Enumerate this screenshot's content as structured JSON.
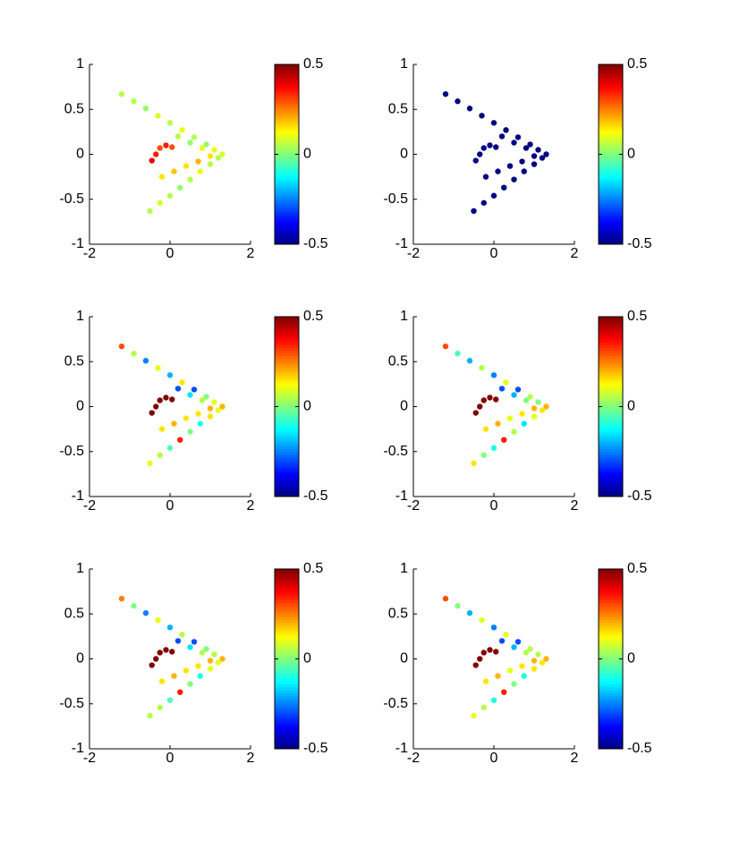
{
  "chart_data": [
    {
      "type": "scatter",
      "colormap": "jet",
      "xlim": [
        -2,
        2
      ],
      "ylim": [
        -1,
        1
      ],
      "xticks": [
        -2,
        0,
        2
      ],
      "yticks": [
        -1,
        -0.5,
        0,
        0.5,
        1
      ],
      "clim": [
        -0.5,
        0.5
      ],
      "cticks": [
        -0.5,
        0,
        0.5
      ],
      "x": [
        -1.2,
        -0.9,
        -0.6,
        -0.3,
        0,
        0.3,
        0.6,
        0.9,
        1.1,
        1.3,
        -0.5,
        -0.25,
        0,
        0.25,
        0.5,
        0.75,
        1.0,
        1.2,
        -0.2,
        0.1,
        0.4,
        0.7,
        1.0,
        0.2,
        0.5,
        0.8,
        -0.45,
        -0.35,
        -0.25,
        -0.1,
        0.05
      ],
      "values": [
        0.67,
        0.59,
        0.51,
        0.43,
        0.35,
        0.27,
        0.19,
        0.11,
        0.05,
        0,
        -0.63,
        -0.54,
        -0.46,
        -0.37,
        -0.28,
        -0.19,
        -0.11,
        -0.04,
        -0.25,
        -0.19,
        -0.13,
        -0.08,
        -0.02,
        0.2,
        0.13,
        0.07,
        -0.07,
        0.0,
        0.07,
        0.1,
        0.08
      ],
      "color_values": [
        0.05,
        0.05,
        0.02,
        0.08,
        0.05,
        0.1,
        0.05,
        0.02,
        0.1,
        0.08,
        0.05,
        0.08,
        0.05,
        0.02,
        0.05,
        0.1,
        0.05,
        0.05,
        0.15,
        0.18,
        0.15,
        0.2,
        0.15,
        0.05,
        0.02,
        0.1,
        0.4,
        0.35,
        0.3,
        0.35,
        0.3
      ]
    },
    {
      "type": "scatter",
      "colormap": "jet",
      "xlim": [
        -2,
        2
      ],
      "ylim": [
        -1,
        1
      ],
      "xticks": [
        -2,
        0,
        2
      ],
      "yticks": [
        -1,
        -0.5,
        0,
        0.5,
        1
      ],
      "clim": [
        -0.5,
        0.5
      ],
      "cticks": [
        -0.5,
        0,
        0.5
      ],
      "x": [
        -1.2,
        -0.9,
        -0.6,
        -0.3,
        0,
        0.3,
        0.6,
        0.9,
        1.1,
        1.3,
        -0.5,
        -0.25,
        0,
        0.25,
        0.5,
        0.75,
        1.0,
        1.2,
        -0.2,
        0.1,
        0.4,
        0.7,
        1.0,
        0.2,
        0.5,
        0.8,
        -0.45,
        -0.35,
        -0.25,
        -0.1,
        0.05
      ],
      "values": [
        0.67,
        0.59,
        0.51,
        0.43,
        0.35,
        0.27,
        0.19,
        0.11,
        0.05,
        0,
        -0.63,
        -0.54,
        -0.46,
        -0.37,
        -0.28,
        -0.19,
        -0.11,
        -0.04,
        -0.25,
        -0.19,
        -0.13,
        -0.08,
        -0.02,
        0.2,
        0.13,
        0.07,
        -0.07,
        0.0,
        0.07,
        0.1,
        0.08
      ],
      "color_values": [
        -0.5,
        -0.5,
        -0.5,
        -0.5,
        -0.5,
        -0.5,
        -0.5,
        -0.5,
        -0.5,
        -0.5,
        -0.5,
        -0.5,
        -0.5,
        -0.5,
        -0.5,
        -0.5,
        -0.5,
        -0.5,
        -0.5,
        -0.5,
        -0.5,
        -0.5,
        -0.5,
        -0.5,
        -0.5,
        -0.5,
        -0.5,
        -0.5,
        -0.5,
        -0.5,
        -0.5
      ]
    },
    {
      "type": "scatter",
      "colormap": "jet",
      "xlim": [
        -2,
        2
      ],
      "ylim": [
        -1,
        1
      ],
      "xticks": [
        -2,
        0,
        2
      ],
      "yticks": [
        -1,
        -0.5,
        0,
        0.5,
        1
      ],
      "clim": [
        -0.5,
        0.5
      ],
      "cticks": [
        -0.5,
        0,
        0.5
      ],
      "x": [
        -1.2,
        -0.9,
        -0.6,
        -0.3,
        0,
        0.3,
        0.6,
        0.9,
        1.1,
        1.3,
        -0.5,
        -0.25,
        0,
        0.25,
        0.5,
        0.75,
        1.0,
        1.2,
        -0.2,
        0.1,
        0.4,
        0.7,
        1.0,
        0.2,
        0.5,
        0.8,
        -0.45,
        -0.35,
        -0.25,
        -0.1,
        0.05
      ],
      "values": [
        0.67,
        0.59,
        0.51,
        0.43,
        0.35,
        0.27,
        0.19,
        0.11,
        0.05,
        0,
        -0.63,
        -0.54,
        -0.46,
        -0.37,
        -0.28,
        -0.19,
        -0.11,
        -0.04,
        -0.25,
        -0.19,
        -0.13,
        -0.08,
        -0.02,
        0.2,
        0.13,
        0.07,
        -0.07,
        0.0,
        0.07,
        0.1,
        0.08
      ],
      "color_values": [
        0.3,
        0.05,
        -0.25,
        0.1,
        -0.2,
        0.15,
        -0.3,
        0.0,
        0.1,
        0.2,
        0.1,
        0.05,
        -0.05,
        0.35,
        0.0,
        -0.1,
        0.15,
        0.1,
        0.15,
        0.2,
        0.15,
        0.15,
        0.2,
        -0.3,
        -0.15,
        0.05,
        0.5,
        0.5,
        0.5,
        0.5,
        0.5
      ]
    },
    {
      "type": "scatter",
      "colormap": "jet",
      "xlim": [
        -2,
        2
      ],
      "ylim": [
        -1,
        1
      ],
      "xticks": [
        -2,
        0,
        2
      ],
      "yticks": [
        -1,
        -0.5,
        0,
        0.5,
        1
      ],
      "clim": [
        -0.5,
        0.5
      ],
      "cticks": [
        -0.5,
        0,
        0.5
      ],
      "x": [
        -1.2,
        -0.9,
        -0.6,
        -0.3,
        0,
        0.3,
        0.6,
        0.9,
        1.1,
        1.3,
        -0.5,
        -0.25,
        0,
        0.25,
        0.5,
        0.75,
        1.0,
        1.2,
        -0.2,
        0.1,
        0.4,
        0.7,
        1.0,
        0.2,
        0.5,
        0.8,
        -0.45,
        -0.35,
        -0.25,
        -0.1,
        0.05
      ],
      "values": [
        0.67,
        0.59,
        0.51,
        0.43,
        0.35,
        0.27,
        0.19,
        0.11,
        0.05,
        0,
        -0.63,
        -0.54,
        -0.46,
        -0.37,
        -0.28,
        -0.19,
        -0.11,
        -0.04,
        -0.25,
        -0.19,
        -0.13,
        -0.08,
        -0.02,
        0.2,
        0.13,
        0.07,
        -0.07,
        0.0,
        0.07,
        0.1,
        0.08
      ],
      "color_values": [
        0.3,
        -0.05,
        -0.2,
        0.05,
        -0.25,
        0.1,
        -0.3,
        0.05,
        0.0,
        0.2,
        0.15,
        0.0,
        -0.1,
        0.35,
        0.05,
        -0.15,
        0.1,
        0.15,
        0.15,
        0.2,
        0.1,
        0.15,
        0.2,
        -0.3,
        -0.2,
        0.0,
        0.5,
        0.5,
        0.5,
        0.5,
        0.5
      ]
    },
    {
      "type": "scatter",
      "colormap": "jet",
      "xlim": [
        -2,
        2
      ],
      "ylim": [
        -1,
        1
      ],
      "xticks": [
        -2,
        0,
        2
      ],
      "yticks": [
        -1,
        -0.5,
        0,
        0.5,
        1
      ],
      "clim": [
        -0.5,
        0.5
      ],
      "cticks": [
        -0.5,
        0,
        0.5
      ],
      "x": [
        -1.2,
        -0.9,
        -0.6,
        -0.3,
        0,
        0.3,
        0.6,
        0.9,
        1.1,
        1.3,
        -0.5,
        -0.25,
        0,
        0.25,
        0.5,
        0.75,
        1.0,
        1.2,
        -0.2,
        0.1,
        0.4,
        0.7,
        1.0,
        0.2,
        0.5,
        0.8,
        -0.45,
        -0.35,
        -0.25,
        -0.1,
        0.05
      ],
      "values": [
        0.67,
        0.59,
        0.51,
        0.43,
        0.35,
        0.27,
        0.19,
        0.11,
        0.05,
        0,
        -0.63,
        -0.54,
        -0.46,
        -0.37,
        -0.28,
        -0.19,
        -0.11,
        -0.04,
        -0.25,
        -0.19,
        -0.13,
        -0.08,
        -0.02,
        0.2,
        0.13,
        0.07,
        -0.07,
        0.0,
        0.07,
        0.1,
        0.08
      ],
      "color_values": [
        0.25,
        0.0,
        -0.25,
        0.1,
        -0.2,
        0.05,
        -0.3,
        0.0,
        0.05,
        0.2,
        0.05,
        0.05,
        -0.05,
        0.35,
        0.0,
        -0.1,
        0.1,
        0.1,
        0.15,
        0.2,
        0.15,
        0.15,
        0.2,
        -0.3,
        -0.15,
        0.05,
        0.5,
        0.5,
        0.5,
        0.5,
        0.5
      ]
    },
    {
      "type": "scatter",
      "colormap": "jet",
      "xlim": [
        -2,
        2
      ],
      "ylim": [
        -1,
        1
      ],
      "xticks": [
        -2,
        0,
        2
      ],
      "yticks": [
        -1,
        -0.5,
        0,
        0.5,
        1
      ],
      "clim": [
        -0.5,
        0.5
      ],
      "cticks": [
        -0.5,
        0,
        0.5
      ],
      "x": [
        -1.2,
        -0.9,
        -0.6,
        -0.3,
        0,
        0.3,
        0.6,
        0.9,
        1.1,
        1.3,
        -0.5,
        -0.25,
        0,
        0.25,
        0.5,
        0.75,
        1.0,
        1.2,
        -0.2,
        0.1,
        0.4,
        0.7,
        1.0,
        0.2,
        0.5,
        0.8,
        -0.45,
        -0.35,
        -0.25,
        -0.1,
        0.05
      ],
      "values": [
        0.67,
        0.59,
        0.51,
        0.43,
        0.35,
        0.27,
        0.19,
        0.11,
        0.05,
        0,
        -0.63,
        -0.54,
        -0.46,
        -0.37,
        -0.28,
        -0.19,
        -0.11,
        -0.04,
        -0.25,
        -0.19,
        -0.13,
        -0.08,
        -0.02,
        0.2,
        0.13,
        0.07,
        -0.07,
        0.0,
        0.07,
        0.1,
        0.08
      ],
      "color_values": [
        0.3,
        0.0,
        -0.2,
        0.1,
        -0.25,
        0.1,
        -0.3,
        0.05,
        0.05,
        0.2,
        0.1,
        0.05,
        -0.1,
        0.35,
        0.0,
        -0.1,
        0.15,
        0.15,
        0.15,
        0.2,
        0.1,
        0.15,
        0.2,
        -0.3,
        -0.2,
        0.05,
        0.5,
        0.5,
        0.5,
        0.5,
        0.5
      ]
    }
  ]
}
